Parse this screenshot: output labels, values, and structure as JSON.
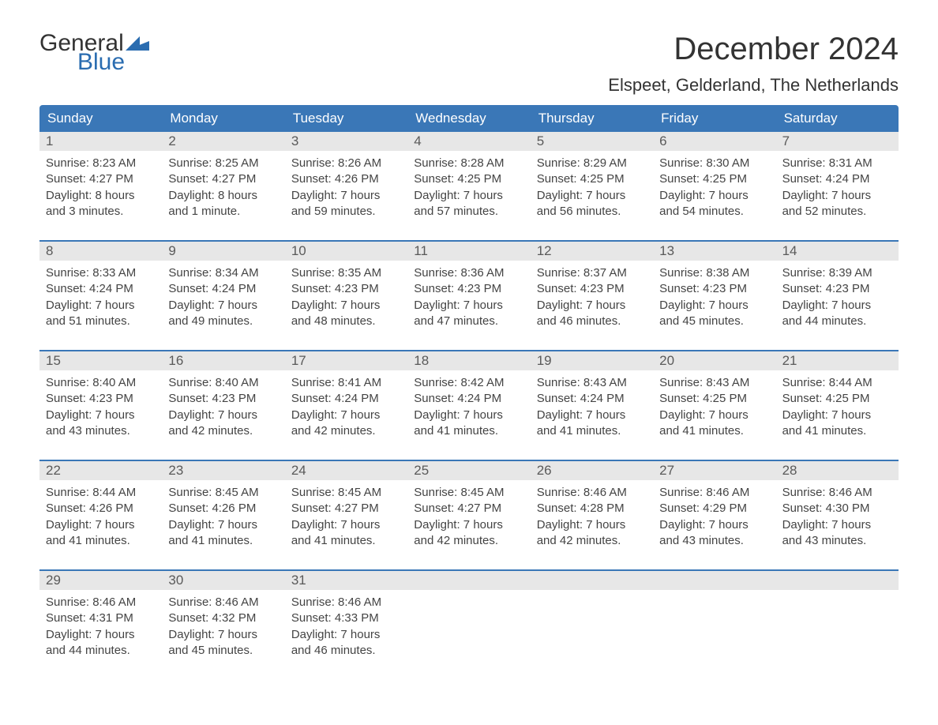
{
  "logo": {
    "text_top": "General",
    "text_bottom": "Blue",
    "flag_color": "#2a6cb0"
  },
  "title": "December 2024",
  "location": "Elspeet, Gelderland, The Netherlands",
  "colors": {
    "header_bg": "#3a77b7",
    "header_text": "#ffffff",
    "daynum_bg": "#e7e7e7",
    "daynum_text": "#5a5a5a",
    "body_text": "#444444",
    "week_border": "#3a77b7",
    "logo_blue": "#2a6cb0",
    "logo_dark": "#333333"
  },
  "day_names": [
    "Sunday",
    "Monday",
    "Tuesday",
    "Wednesday",
    "Thursday",
    "Friday",
    "Saturday"
  ],
  "weeks": [
    [
      {
        "n": "1",
        "sr": "Sunrise: 8:23 AM",
        "ss": "Sunset: 4:27 PM",
        "d1": "Daylight: 8 hours",
        "d2": "and 3 minutes."
      },
      {
        "n": "2",
        "sr": "Sunrise: 8:25 AM",
        "ss": "Sunset: 4:27 PM",
        "d1": "Daylight: 8 hours",
        "d2": "and 1 minute."
      },
      {
        "n": "3",
        "sr": "Sunrise: 8:26 AM",
        "ss": "Sunset: 4:26 PM",
        "d1": "Daylight: 7 hours",
        "d2": "and 59 minutes."
      },
      {
        "n": "4",
        "sr": "Sunrise: 8:28 AM",
        "ss": "Sunset: 4:25 PM",
        "d1": "Daylight: 7 hours",
        "d2": "and 57 minutes."
      },
      {
        "n": "5",
        "sr": "Sunrise: 8:29 AM",
        "ss": "Sunset: 4:25 PM",
        "d1": "Daylight: 7 hours",
        "d2": "and 56 minutes."
      },
      {
        "n": "6",
        "sr": "Sunrise: 8:30 AM",
        "ss": "Sunset: 4:25 PM",
        "d1": "Daylight: 7 hours",
        "d2": "and 54 minutes."
      },
      {
        "n": "7",
        "sr": "Sunrise: 8:31 AM",
        "ss": "Sunset: 4:24 PM",
        "d1": "Daylight: 7 hours",
        "d2": "and 52 minutes."
      }
    ],
    [
      {
        "n": "8",
        "sr": "Sunrise: 8:33 AM",
        "ss": "Sunset: 4:24 PM",
        "d1": "Daylight: 7 hours",
        "d2": "and 51 minutes."
      },
      {
        "n": "9",
        "sr": "Sunrise: 8:34 AM",
        "ss": "Sunset: 4:24 PM",
        "d1": "Daylight: 7 hours",
        "d2": "and 49 minutes."
      },
      {
        "n": "10",
        "sr": "Sunrise: 8:35 AM",
        "ss": "Sunset: 4:23 PM",
        "d1": "Daylight: 7 hours",
        "d2": "and 48 minutes."
      },
      {
        "n": "11",
        "sr": "Sunrise: 8:36 AM",
        "ss": "Sunset: 4:23 PM",
        "d1": "Daylight: 7 hours",
        "d2": "and 47 minutes."
      },
      {
        "n": "12",
        "sr": "Sunrise: 8:37 AM",
        "ss": "Sunset: 4:23 PM",
        "d1": "Daylight: 7 hours",
        "d2": "and 46 minutes."
      },
      {
        "n": "13",
        "sr": "Sunrise: 8:38 AM",
        "ss": "Sunset: 4:23 PM",
        "d1": "Daylight: 7 hours",
        "d2": "and 45 minutes."
      },
      {
        "n": "14",
        "sr": "Sunrise: 8:39 AM",
        "ss": "Sunset: 4:23 PM",
        "d1": "Daylight: 7 hours",
        "d2": "and 44 minutes."
      }
    ],
    [
      {
        "n": "15",
        "sr": "Sunrise: 8:40 AM",
        "ss": "Sunset: 4:23 PM",
        "d1": "Daylight: 7 hours",
        "d2": "and 43 minutes."
      },
      {
        "n": "16",
        "sr": "Sunrise: 8:40 AM",
        "ss": "Sunset: 4:23 PM",
        "d1": "Daylight: 7 hours",
        "d2": "and 42 minutes."
      },
      {
        "n": "17",
        "sr": "Sunrise: 8:41 AM",
        "ss": "Sunset: 4:24 PM",
        "d1": "Daylight: 7 hours",
        "d2": "and 42 minutes."
      },
      {
        "n": "18",
        "sr": "Sunrise: 8:42 AM",
        "ss": "Sunset: 4:24 PM",
        "d1": "Daylight: 7 hours",
        "d2": "and 41 minutes."
      },
      {
        "n": "19",
        "sr": "Sunrise: 8:43 AM",
        "ss": "Sunset: 4:24 PM",
        "d1": "Daylight: 7 hours",
        "d2": "and 41 minutes."
      },
      {
        "n": "20",
        "sr": "Sunrise: 8:43 AM",
        "ss": "Sunset: 4:25 PM",
        "d1": "Daylight: 7 hours",
        "d2": "and 41 minutes."
      },
      {
        "n": "21",
        "sr": "Sunrise: 8:44 AM",
        "ss": "Sunset: 4:25 PM",
        "d1": "Daylight: 7 hours",
        "d2": "and 41 minutes."
      }
    ],
    [
      {
        "n": "22",
        "sr": "Sunrise: 8:44 AM",
        "ss": "Sunset: 4:26 PM",
        "d1": "Daylight: 7 hours",
        "d2": "and 41 minutes."
      },
      {
        "n": "23",
        "sr": "Sunrise: 8:45 AM",
        "ss": "Sunset: 4:26 PM",
        "d1": "Daylight: 7 hours",
        "d2": "and 41 minutes."
      },
      {
        "n": "24",
        "sr": "Sunrise: 8:45 AM",
        "ss": "Sunset: 4:27 PM",
        "d1": "Daylight: 7 hours",
        "d2": "and 41 minutes."
      },
      {
        "n": "25",
        "sr": "Sunrise: 8:45 AM",
        "ss": "Sunset: 4:27 PM",
        "d1": "Daylight: 7 hours",
        "d2": "and 42 minutes."
      },
      {
        "n": "26",
        "sr": "Sunrise: 8:46 AM",
        "ss": "Sunset: 4:28 PM",
        "d1": "Daylight: 7 hours",
        "d2": "and 42 minutes."
      },
      {
        "n": "27",
        "sr": "Sunrise: 8:46 AM",
        "ss": "Sunset: 4:29 PM",
        "d1": "Daylight: 7 hours",
        "d2": "and 43 minutes."
      },
      {
        "n": "28",
        "sr": "Sunrise: 8:46 AM",
        "ss": "Sunset: 4:30 PM",
        "d1": "Daylight: 7 hours",
        "d2": "and 43 minutes."
      }
    ],
    [
      {
        "n": "29",
        "sr": "Sunrise: 8:46 AM",
        "ss": "Sunset: 4:31 PM",
        "d1": "Daylight: 7 hours",
        "d2": "and 44 minutes."
      },
      {
        "n": "30",
        "sr": "Sunrise: 8:46 AM",
        "ss": "Sunset: 4:32 PM",
        "d1": "Daylight: 7 hours",
        "d2": "and 45 minutes."
      },
      {
        "n": "31",
        "sr": "Sunrise: 8:46 AM",
        "ss": "Sunset: 4:33 PM",
        "d1": "Daylight: 7 hours",
        "d2": "and 46 minutes."
      },
      {
        "n": "",
        "sr": "",
        "ss": "",
        "d1": "",
        "d2": ""
      },
      {
        "n": "",
        "sr": "",
        "ss": "",
        "d1": "",
        "d2": ""
      },
      {
        "n": "",
        "sr": "",
        "ss": "",
        "d1": "",
        "d2": ""
      },
      {
        "n": "",
        "sr": "",
        "ss": "",
        "d1": "",
        "d2": ""
      }
    ]
  ]
}
